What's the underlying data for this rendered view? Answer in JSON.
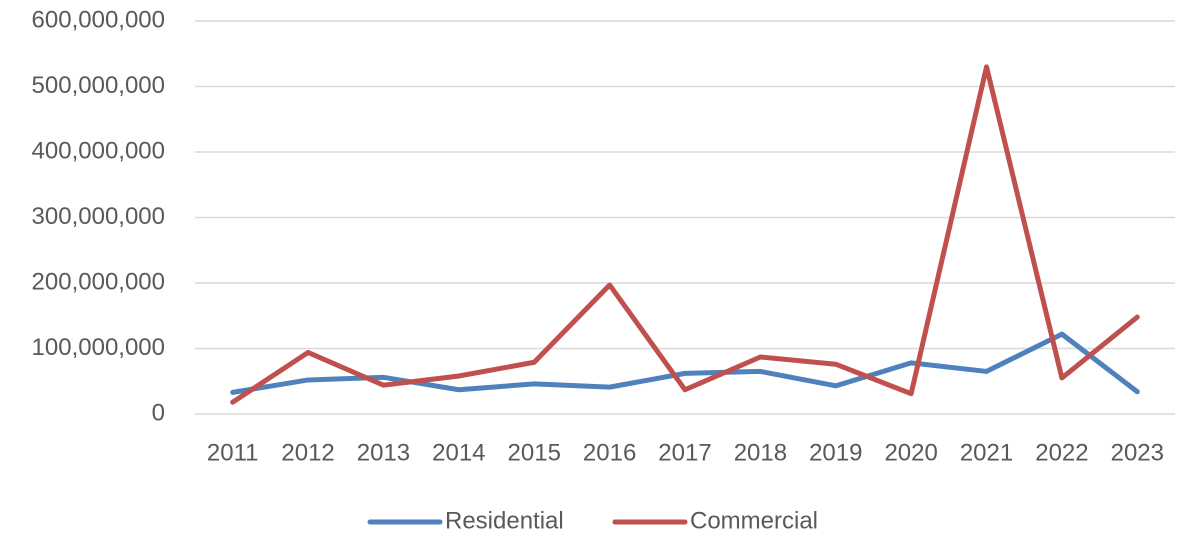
{
  "chart_data": {
    "type": "line",
    "categories": [
      "2011",
      "2012",
      "2013",
      "2014",
      "2015",
      "2016",
      "2017",
      "2018",
      "2019",
      "2020",
      "2021",
      "2022",
      "2023"
    ],
    "series": [
      {
        "name": "Residential",
        "color": "#4f81bd",
        "values": [
          33000000,
          52000000,
          56000000,
          37000000,
          46000000,
          41000000,
          62000000,
          65000000,
          43000000,
          78000000,
          65000000,
          122000000,
          34000000
        ]
      },
      {
        "name": "Commercial",
        "color": "#c0504d",
        "values": [
          18000000,
          94000000,
          44000000,
          58000000,
          79000000,
          197000000,
          37000000,
          87000000,
          76000000,
          31000000,
          530000000,
          55000000,
          148000000
        ]
      }
    ],
    "ylim": [
      0,
      600000000
    ],
    "yticks": [
      0,
      {
        "value": 100000000,
        "label": "100,000,000"
      },
      {
        "value": 200000000,
        "label": "200,000,000"
      },
      {
        "value": 300000000,
        "label": "300,000,000"
      },
      {
        "value": 400000000,
        "label": "400,000,000"
      },
      {
        "value": 500000000,
        "label": "500,000,000"
      },
      {
        "value": 600000000,
        "label": "600,000,000"
      }
    ],
    "grid": true,
    "legend": "bottom"
  }
}
